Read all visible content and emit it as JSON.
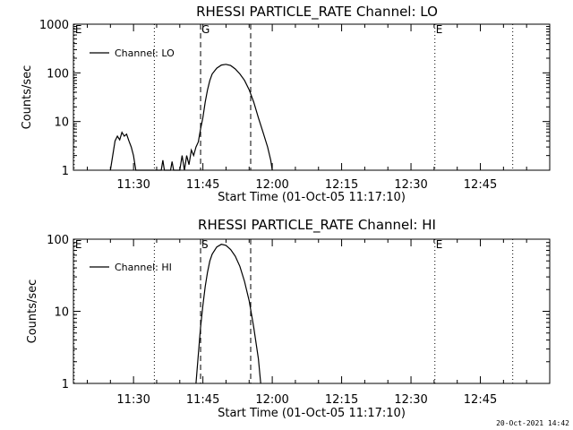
{
  "chart_data": [
    {
      "type": "line",
      "title": "RHESSI PARTICLE_RATE Channel: LO",
      "xlabel": "Start Time (01-Oct-05 11:17:10)",
      "ylabel": "Counts/sec",
      "yscale": "log",
      "xlim": [
        "11:17",
        "13:00"
      ],
      "ylim": [
        1,
        1000
      ],
      "x_ticks": [
        "11:30",
        "11:45",
        "12:00",
        "12:15",
        "12:30",
        "12:45"
      ],
      "y_ticks": [
        "1",
        "10",
        "100",
        "1000"
      ],
      "grid": false,
      "legend_position": "top-left",
      "series": [
        {
          "name": "Channel: LO",
          "points": [
            [
              "11:25:00",
              1
            ],
            [
              "11:25:30",
              2
            ],
            [
              "11:26:00",
              4
            ],
            [
              "11:26:30",
              5
            ],
            [
              "11:27:00",
              4.2
            ],
            [
              "11:27:30",
              6
            ],
            [
              "11:28:00",
              5
            ],
            [
              "11:28:30",
              5.5
            ],
            [
              "11:29:00",
              4
            ],
            [
              "11:29:30",
              3
            ],
            [
              "11:30:00",
              2
            ],
            [
              "11:30:30",
              1
            ],
            [
              "11:36:00",
              1
            ],
            [
              "11:36:20",
              1.6
            ],
            [
              "11:36:40",
              1
            ],
            [
              "11:38:00",
              1
            ],
            [
              "11:38:20",
              1.5
            ],
            [
              "11:38:40",
              1
            ],
            [
              "11:40:00",
              1
            ],
            [
              "11:40:30",
              2
            ],
            [
              "11:41:00",
              1
            ],
            [
              "11:41:30",
              2
            ],
            [
              "11:42:00",
              1.3
            ],
            [
              "11:42:30",
              2.6
            ],
            [
              "11:43:00",
              2
            ],
            [
              "11:43:30",
              3
            ],
            [
              "11:44:00",
              3.8
            ],
            [
              "11:44:30",
              7
            ],
            [
              "11:45:00",
              12
            ],
            [
              "11:45:30",
              25
            ],
            [
              "11:46:00",
              45
            ],
            [
              "11:46:30",
              70
            ],
            [
              "11:47:00",
              95
            ],
            [
              "11:48:00",
              125
            ],
            [
              "11:49:00",
              145
            ],
            [
              "11:50:00",
              150
            ],
            [
              "11:51:00",
              142
            ],
            [
              "11:52:00",
              120
            ],
            [
              "11:53:00",
              95
            ],
            [
              "11:54:00",
              70
            ],
            [
              "11:55:00",
              45
            ],
            [
              "11:56:00",
              25
            ],
            [
              "11:57:00",
              12
            ],
            [
              "11:58:00",
              6
            ],
            [
              "11:59:00",
              3
            ],
            [
              "11:59:40",
              1.6
            ],
            [
              "12:00:00",
              1
            ]
          ]
        }
      ],
      "markers": [
        {
          "label": "E",
          "time": "11:17:10",
          "style": "dotted"
        },
        {
          "label": "",
          "time": "11:34:30",
          "style": "dotted"
        },
        {
          "label": "G",
          "time": "11:44:30",
          "style": "dashed"
        },
        {
          "label": "",
          "time": "11:55:20",
          "style": "dashed"
        },
        {
          "label": "E",
          "time": "12:35:10",
          "style": "dotted"
        },
        {
          "label": "",
          "time": "12:52:00",
          "style": "dotted"
        }
      ]
    },
    {
      "type": "line",
      "title": "RHESSI PARTICLE_RATE Channel: HI",
      "xlabel": "Start Time (01-Oct-05 11:17:10)",
      "ylabel": "Counts/sec",
      "yscale": "log",
      "xlim": [
        "11:17",
        "13:00"
      ],
      "ylim": [
        1,
        100
      ],
      "x_ticks": [
        "11:30",
        "11:45",
        "12:00",
        "12:15",
        "12:30",
        "12:45"
      ],
      "y_ticks": [
        "1",
        "10",
        "100"
      ],
      "grid": false,
      "legend_position": "top-left",
      "series": [
        {
          "name": "Channel: HI",
          "points": [
            [
              "11:43:30",
              1
            ],
            [
              "11:44:00",
              2.5
            ],
            [
              "11:44:30",
              6
            ],
            [
              "11:45:00",
              12
            ],
            [
              "11:45:30",
              22
            ],
            [
              "11:46:00",
              35
            ],
            [
              "11:46:30",
              50
            ],
            [
              "11:47:00",
              62
            ],
            [
              "11:48:00",
              78
            ],
            [
              "11:49:00",
              85
            ],
            [
              "11:50:00",
              82
            ],
            [
              "11:51:00",
              72
            ],
            [
              "11:52:00",
              58
            ],
            [
              "11:53:00",
              42
            ],
            [
              "11:54:00",
              26
            ],
            [
              "11:55:00",
              14
            ],
            [
              "11:56:00",
              6
            ],
            [
              "11:57:00",
              2.2
            ],
            [
              "11:57:30",
              1
            ]
          ]
        }
      ],
      "markers": [
        {
          "label": "E",
          "time": "11:17:10",
          "style": "dotted"
        },
        {
          "label": "",
          "time": "11:34:30",
          "style": "dotted"
        },
        {
          "label": "S",
          "time": "11:44:30",
          "style": "dashed"
        },
        {
          "label": "",
          "time": "11:55:20",
          "style": "dashed"
        },
        {
          "label": "E",
          "time": "12:35:10",
          "style": "dotted"
        },
        {
          "label": "",
          "time": "12:52:00",
          "style": "dotted"
        }
      ]
    }
  ],
  "footer": {
    "timestamp": "20-Oct-2021 14:42"
  },
  "colors": {
    "background": "#ffffff",
    "foreground": "#000000"
  }
}
